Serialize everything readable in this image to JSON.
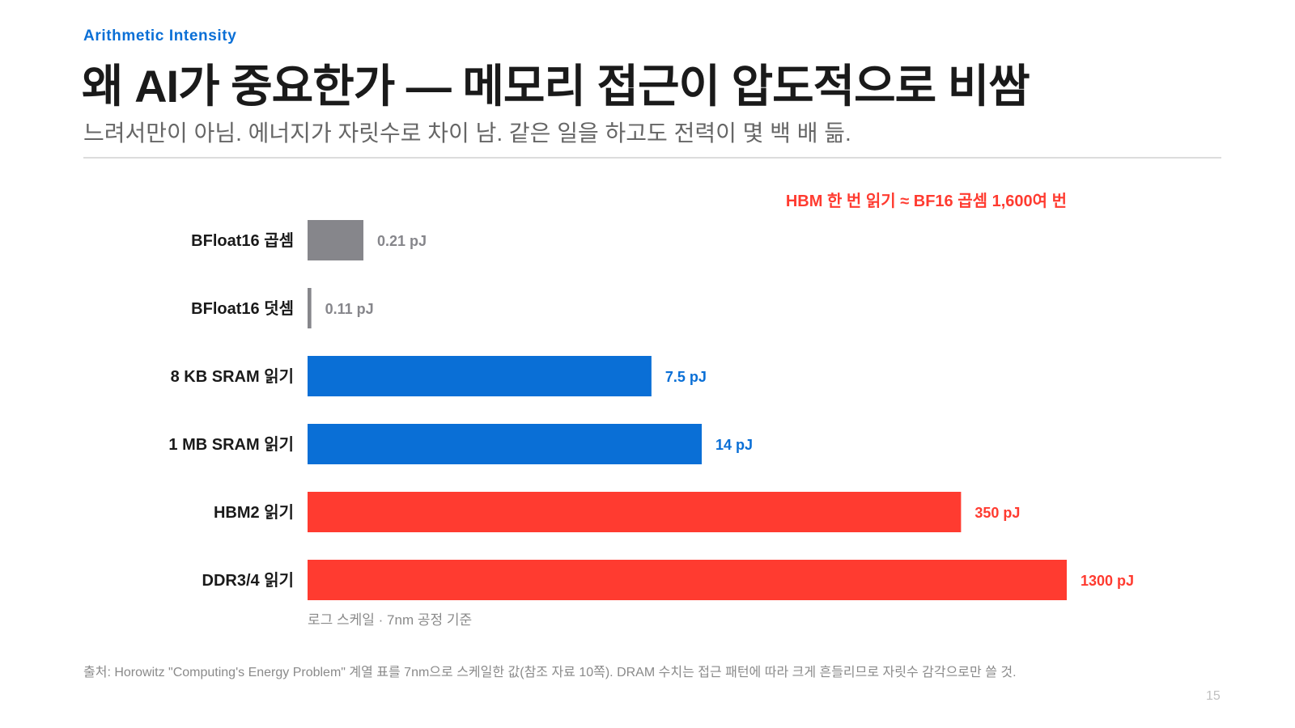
{
  "header": {
    "eyebrow": "Arithmetic Intensity",
    "title": "왜 AI가 중요한가 — 메모리 접근이 압도적으로 비쌈",
    "subtitle": "느려서만이 아님. 에너지가 자릿수로 차이 남. 같은 일을 하고도 전력이 몇 백 배 듦."
  },
  "chart_data": {
    "type": "bar",
    "orientation": "horizontal",
    "scale": "log",
    "categories": [
      "BFloat16 곱셈",
      "BFloat16 덧셈",
      "8 KB SRAM 읽기",
      "1 MB SRAM 읽기",
      "HBM2 읽기",
      "DDR3/4 읽기"
    ],
    "values": [
      0.21,
      0.11,
      7.5,
      14,
      350,
      1300
    ],
    "value_labels": [
      "0.21 pJ",
      "0.11 pJ",
      "7.5 pJ",
      "14 pJ",
      "350 pJ",
      "1300 pJ"
    ],
    "colors": [
      "#86868b",
      "#86868b",
      "#0a6fd6",
      "#0a6fd6",
      "#ff3b30",
      "#ff3b30"
    ],
    "label_colors": [
      "#86868b",
      "#86868b",
      "#0a6fd6",
      "#0a6fd6",
      "#ff3b30",
      "#ff3b30"
    ],
    "annotation": "HBM 한 번 읽기 ≈ BF16 곱셈 1,600여 번",
    "annotation_color": "#ff3b30",
    "axis_note": "로그 스케일 · 7nm 공정 기준",
    "grid": false
  },
  "footer": {
    "source": "출처: Horowitz \"Computing's Energy Problem\" 계열 표를 7nm으로 스케일한 값(참조 자료 10쪽). DRAM 수치는 접근 패턴에 따라 크게 흔들리므로 자릿수 감각으로만 쓸 것.",
    "page_number": "15"
  }
}
